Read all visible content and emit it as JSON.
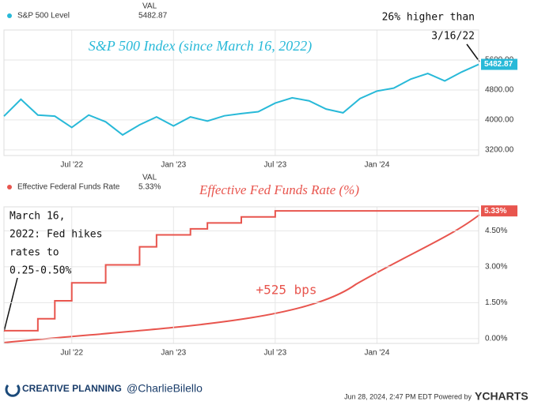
{
  "chart_data": [
    {
      "type": "line",
      "value_header": "VAL",
      "annotations": [
        "S&P 500 Index (since March 16, 2022)",
        "26% higher than",
        "3/16/22"
      ],
      "x": [
        "2022-03",
        "2022-04",
        "2022-05",
        "2022-06",
        "2022-07",
        "2022-08",
        "2022-09",
        "2022-10",
        "2022-11",
        "2022-12",
        "2023-01",
        "2023-02",
        "2023-03",
        "2023-04",
        "2023-05",
        "2023-06",
        "2023-07",
        "2023-08",
        "2023-09",
        "2023-10",
        "2023-11",
        "2023-12",
        "2024-01",
        "2024-02",
        "2024-03",
        "2024-04",
        "2024-05",
        "2024-06",
        "2024-07"
      ],
      "xlim": [
        "2022-03",
        "2024-07"
      ],
      "xticks": [
        {
          "value": "2022-07",
          "label": "Jul '22"
        },
        {
          "value": "2023-01",
          "label": "Jan '23"
        },
        {
          "value": "2023-07",
          "label": "Jul '23"
        },
        {
          "value": "2024-01",
          "label": "Jan '24"
        }
      ],
      "ylim": [
        3050,
        6400
      ],
      "yticks": [
        {
          "value": 3200,
          "label": "3200.00"
        },
        {
          "value": 4000,
          "label": "4000.00"
        },
        {
          "value": 4800,
          "label": "4800.00"
        },
        {
          "value": 5600,
          "label": "5600.00"
        }
      ],
      "grid": true,
      "series": [
        {
          "name": "S&P 500 Level",
          "color": "#28b9d8",
          "values": [
            4100,
            4550,
            4130,
            4100,
            3800,
            4130,
            3950,
            3600,
            3870,
            4080,
            3840,
            4080,
            3970,
            4110,
            4170,
            4220,
            4450,
            4590,
            4510,
            4290,
            4190,
            4570,
            4770,
            4850,
            5090,
            5240,
            5040,
            5280,
            5482.87
          ]
        }
      ]
    },
    {
      "type": "line",
      "step": "post",
      "value_header": "VAL",
      "annotations": [
        "Effective Fed Funds Rate (%)",
        "March 16,",
        "2022: Fed hikes",
        "rates to",
        "0.25-0.50%",
        "+525 bps"
      ],
      "x": [
        "2022-03",
        "2022-04",
        "2022-05",
        "2022-06",
        "2022-07",
        "2022-08",
        "2022-09",
        "2022-10",
        "2022-11",
        "2022-12",
        "2023-01",
        "2023-02",
        "2023-03",
        "2023-04",
        "2023-05",
        "2023-06",
        "2023-07",
        "2023-08",
        "2023-09",
        "2023-10",
        "2023-11",
        "2023-12",
        "2024-01",
        "2024-02",
        "2024-03",
        "2024-04",
        "2024-05",
        "2024-06",
        "2024-07"
      ],
      "xlim": [
        "2022-03",
        "2024-07"
      ],
      "xticks": [
        {
          "value": "2022-07",
          "label": "Jul '22"
        },
        {
          "value": "2023-01",
          "label": "Jan '23"
        },
        {
          "value": "2023-07",
          "label": "Jul '23"
        },
        {
          "value": "2024-01",
          "label": "Jan '24"
        }
      ],
      "ylim": [
        -0.2,
        5.5
      ],
      "yticks": [
        {
          "value": 0,
          "label": "0.00%"
        },
        {
          "value": 1.5,
          "label": "1.50%"
        },
        {
          "value": 3,
          "label": "3.00%"
        },
        {
          "value": 4.5,
          "label": "4.50%"
        }
      ],
      "grid": true,
      "series": [
        {
          "name": "Effective Federal Funds Rate",
          "color": "#e8554e",
          "values": [
            0.33,
            0.33,
            0.83,
            1.58,
            2.33,
            2.33,
            3.08,
            3.08,
            3.83,
            4.33,
            4.33,
            4.58,
            4.83,
            4.83,
            5.08,
            5.08,
            5.33,
            5.33,
            5.33,
            5.33,
            5.33,
            5.33,
            5.33,
            5.33,
            5.33,
            5.33,
            5.33,
            5.33,
            5.33
          ],
          "value_labels": [
            null,
            null,
            null,
            null,
            null,
            null,
            null,
            null,
            null,
            null,
            null,
            null,
            null,
            null,
            null,
            null,
            null,
            null,
            null,
            null,
            null,
            null,
            null,
            null,
            null,
            null,
            null,
            null,
            "5.33%"
          ]
        }
      ]
    }
  ],
  "footer": {
    "brand": "CREATIVE PLANNING",
    "handle": "@CharlieBilello",
    "timestamp": "Jun 28, 2024, 2:47 PM EDT Powered by",
    "source": "YCHARTS"
  }
}
